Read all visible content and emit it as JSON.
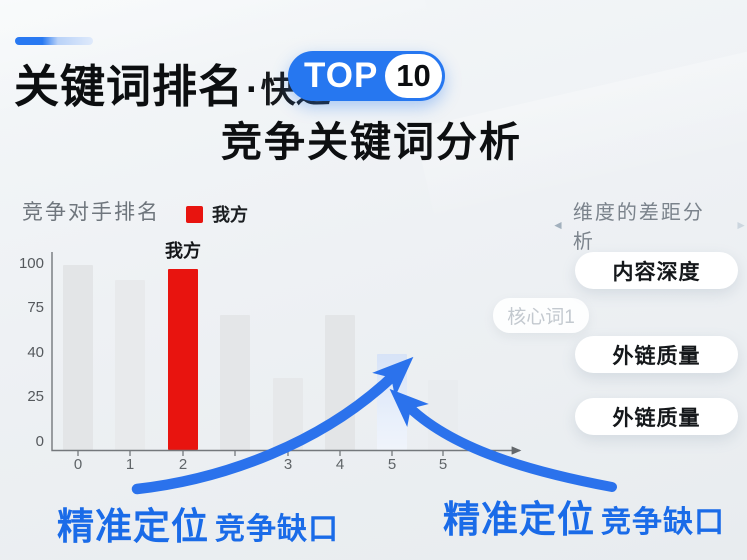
{
  "header": {
    "title_main": "关键词排名",
    "title_dot": "·",
    "title_fast": "快速",
    "badge_top": "TOP",
    "badge_number": "10",
    "subtitle": "竞争关键词分析"
  },
  "chart": {
    "label": "竞争对手排名",
    "legend": {
      "swatch_color": "#e8140f",
      "label": "我方"
    },
    "bar_callout": "我方"
  },
  "chart_data": {
    "type": "bar",
    "title": "竞争对手排名",
    "categories": [
      "0",
      "1",
      "2",
      "",
      "3",
      "4",
      "5",
      "5"
    ],
    "values": [
      100,
      92,
      98,
      73,
      39,
      73,
      52,
      38
    ],
    "series": [
      {
        "name": "我方",
        "highlight_index": 2
      }
    ],
    "bar_colors": [
      "#e3e5e7",
      "#e8eaec",
      "#e8140f",
      "#e4e6e8",
      "#e6e8ea",
      "#e3e5e7",
      "highlight",
      "faint"
    ],
    "y_tick_labels": [
      "100",
      "75",
      "40",
      "25",
      "0"
    ],
    "ylim": [
      0,
      100
    ],
    "grid": false,
    "legend_entries": [
      "我方"
    ],
    "legend_position": "top",
    "bar_label": {
      "index": 2,
      "text": "我方"
    }
  },
  "right_panel": {
    "left_arrow": "◄",
    "header": "维度的差距分析",
    "right_arrow": "►",
    "floating_tag": "核心词1",
    "pills": [
      "内容深度",
      "外链质量",
      "外链质量"
    ]
  },
  "captions": {
    "left": {
      "strong": "精准定位",
      "rest": "竞争缺口"
    },
    "right": {
      "strong": "精准定位",
      "rest": "竞争缺口"
    }
  },
  "colors": {
    "accent_blue": "#2677f0",
    "bar_red": "#e8140f",
    "arrow_blue": "#2b72ec",
    "caption_blue": "#1a6be8",
    "axis_gray": "#74787c"
  }
}
